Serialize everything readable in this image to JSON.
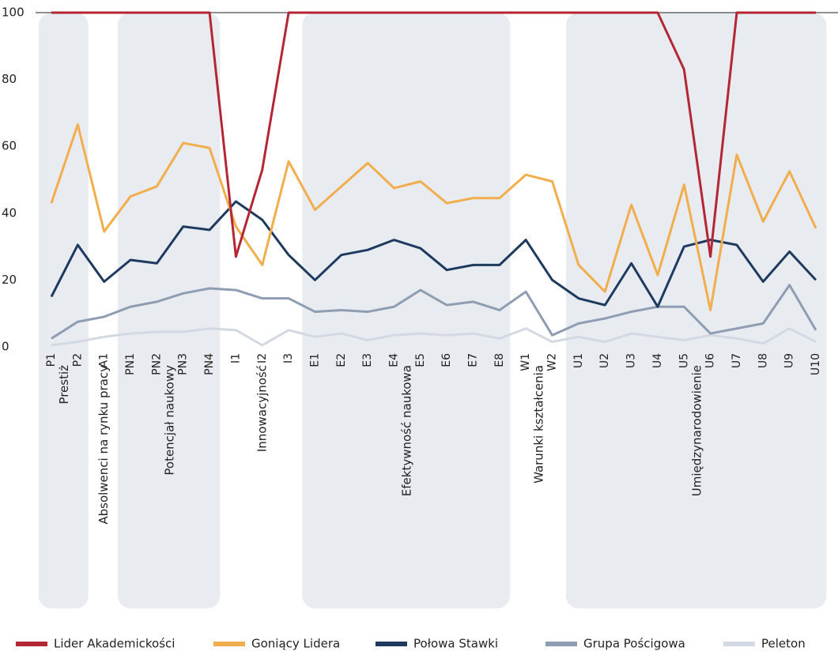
{
  "chart_data": {
    "type": "line",
    "categories": [
      "P1",
      "P2",
      "A1",
      "PN1",
      "PN2",
      "PN3",
      "PN4",
      "I1",
      "I2",
      "I3",
      "E1",
      "E2",
      "E3",
      "E4",
      "E5",
      "E6",
      "E7",
      "E8",
      "W1",
      "W2",
      "U1",
      "U2",
      "U3",
      "U4",
      "U5",
      "U6",
      "U7",
      "U8",
      "U9",
      "U10"
    ],
    "groups": [
      "Prestiż",
      "Absolwenci na rynku pracy",
      "Potencjał naukowy",
      "Innowacyjność",
      "Efektywność naukowa",
      "Warunki kształcenia",
      "Umiędzynarodowienie"
    ],
    "ylim": [
      0,
      100
    ],
    "yticks": [
      0,
      20,
      40,
      60,
      80,
      100
    ],
    "series": [
      {
        "name": "Lider Akademickości",
        "color": "#b52635",
        "values": [
          100,
          100,
          100,
          100,
          100,
          100,
          100,
          27,
          53,
          100,
          100,
          100,
          100,
          100,
          100,
          100,
          100,
          100,
          100,
          100,
          100,
          100,
          100,
          100,
          83,
          27,
          100,
          100,
          100,
          100
        ]
      },
      {
        "name": "Goniący Lidera",
        "color": "#f2ad4c",
        "values": [
          43,
          66.5,
          34.5,
          45,
          48,
          61,
          59.5,
          36,
          24.5,
          55.5,
          41,
          48,
          55,
          47.5,
          49.5,
          43,
          44.5,
          44.5,
          51.5,
          49.5,
          24.5,
          16.5,
          42.5,
          21.5,
          48.5,
          11,
          57.5,
          37.5,
          52.5,
          35.5
        ]
      },
      {
        "name": "Połowa Stawki",
        "color": "#1f3a5f",
        "values": [
          15,
          30.5,
          19.5,
          26,
          25,
          36,
          35,
          43.5,
          38,
          27.5,
          20,
          27.5,
          29,
          32,
          29.5,
          23,
          24.5,
          24.5,
          32,
          20,
          14.5,
          12.5,
          25,
          12,
          30,
          32,
          30.5,
          19.5,
          28.5,
          20
        ]
      },
      {
        "name": "Grupa Pościgowa",
        "color": "#8f9db3",
        "values": [
          2.5,
          7.5,
          9,
          12,
          13.5,
          16,
          17.5,
          17,
          14.5,
          14.5,
          10.5,
          11,
          10.5,
          12,
          17,
          12.5,
          13.5,
          11,
          16.5,
          3.5,
          7,
          8.5,
          10.5,
          12,
          12,
          4,
          5.5,
          7,
          18.5,
          5
        ]
      },
      {
        "name": "Peleton",
        "color": "#d3d9e3",
        "values": [
          0.5,
          1.5,
          3,
          4,
          4.5,
          4.5,
          5.5,
          5,
          0.5,
          5,
          3,
          4,
          2,
          3.5,
          4,
          3.5,
          4,
          2.5,
          5.5,
          1.5,
          3,
          1.5,
          4,
          3,
          2,
          3.5,
          2.5,
          1,
          5.5,
          1.5
        ]
      }
    ]
  }
}
